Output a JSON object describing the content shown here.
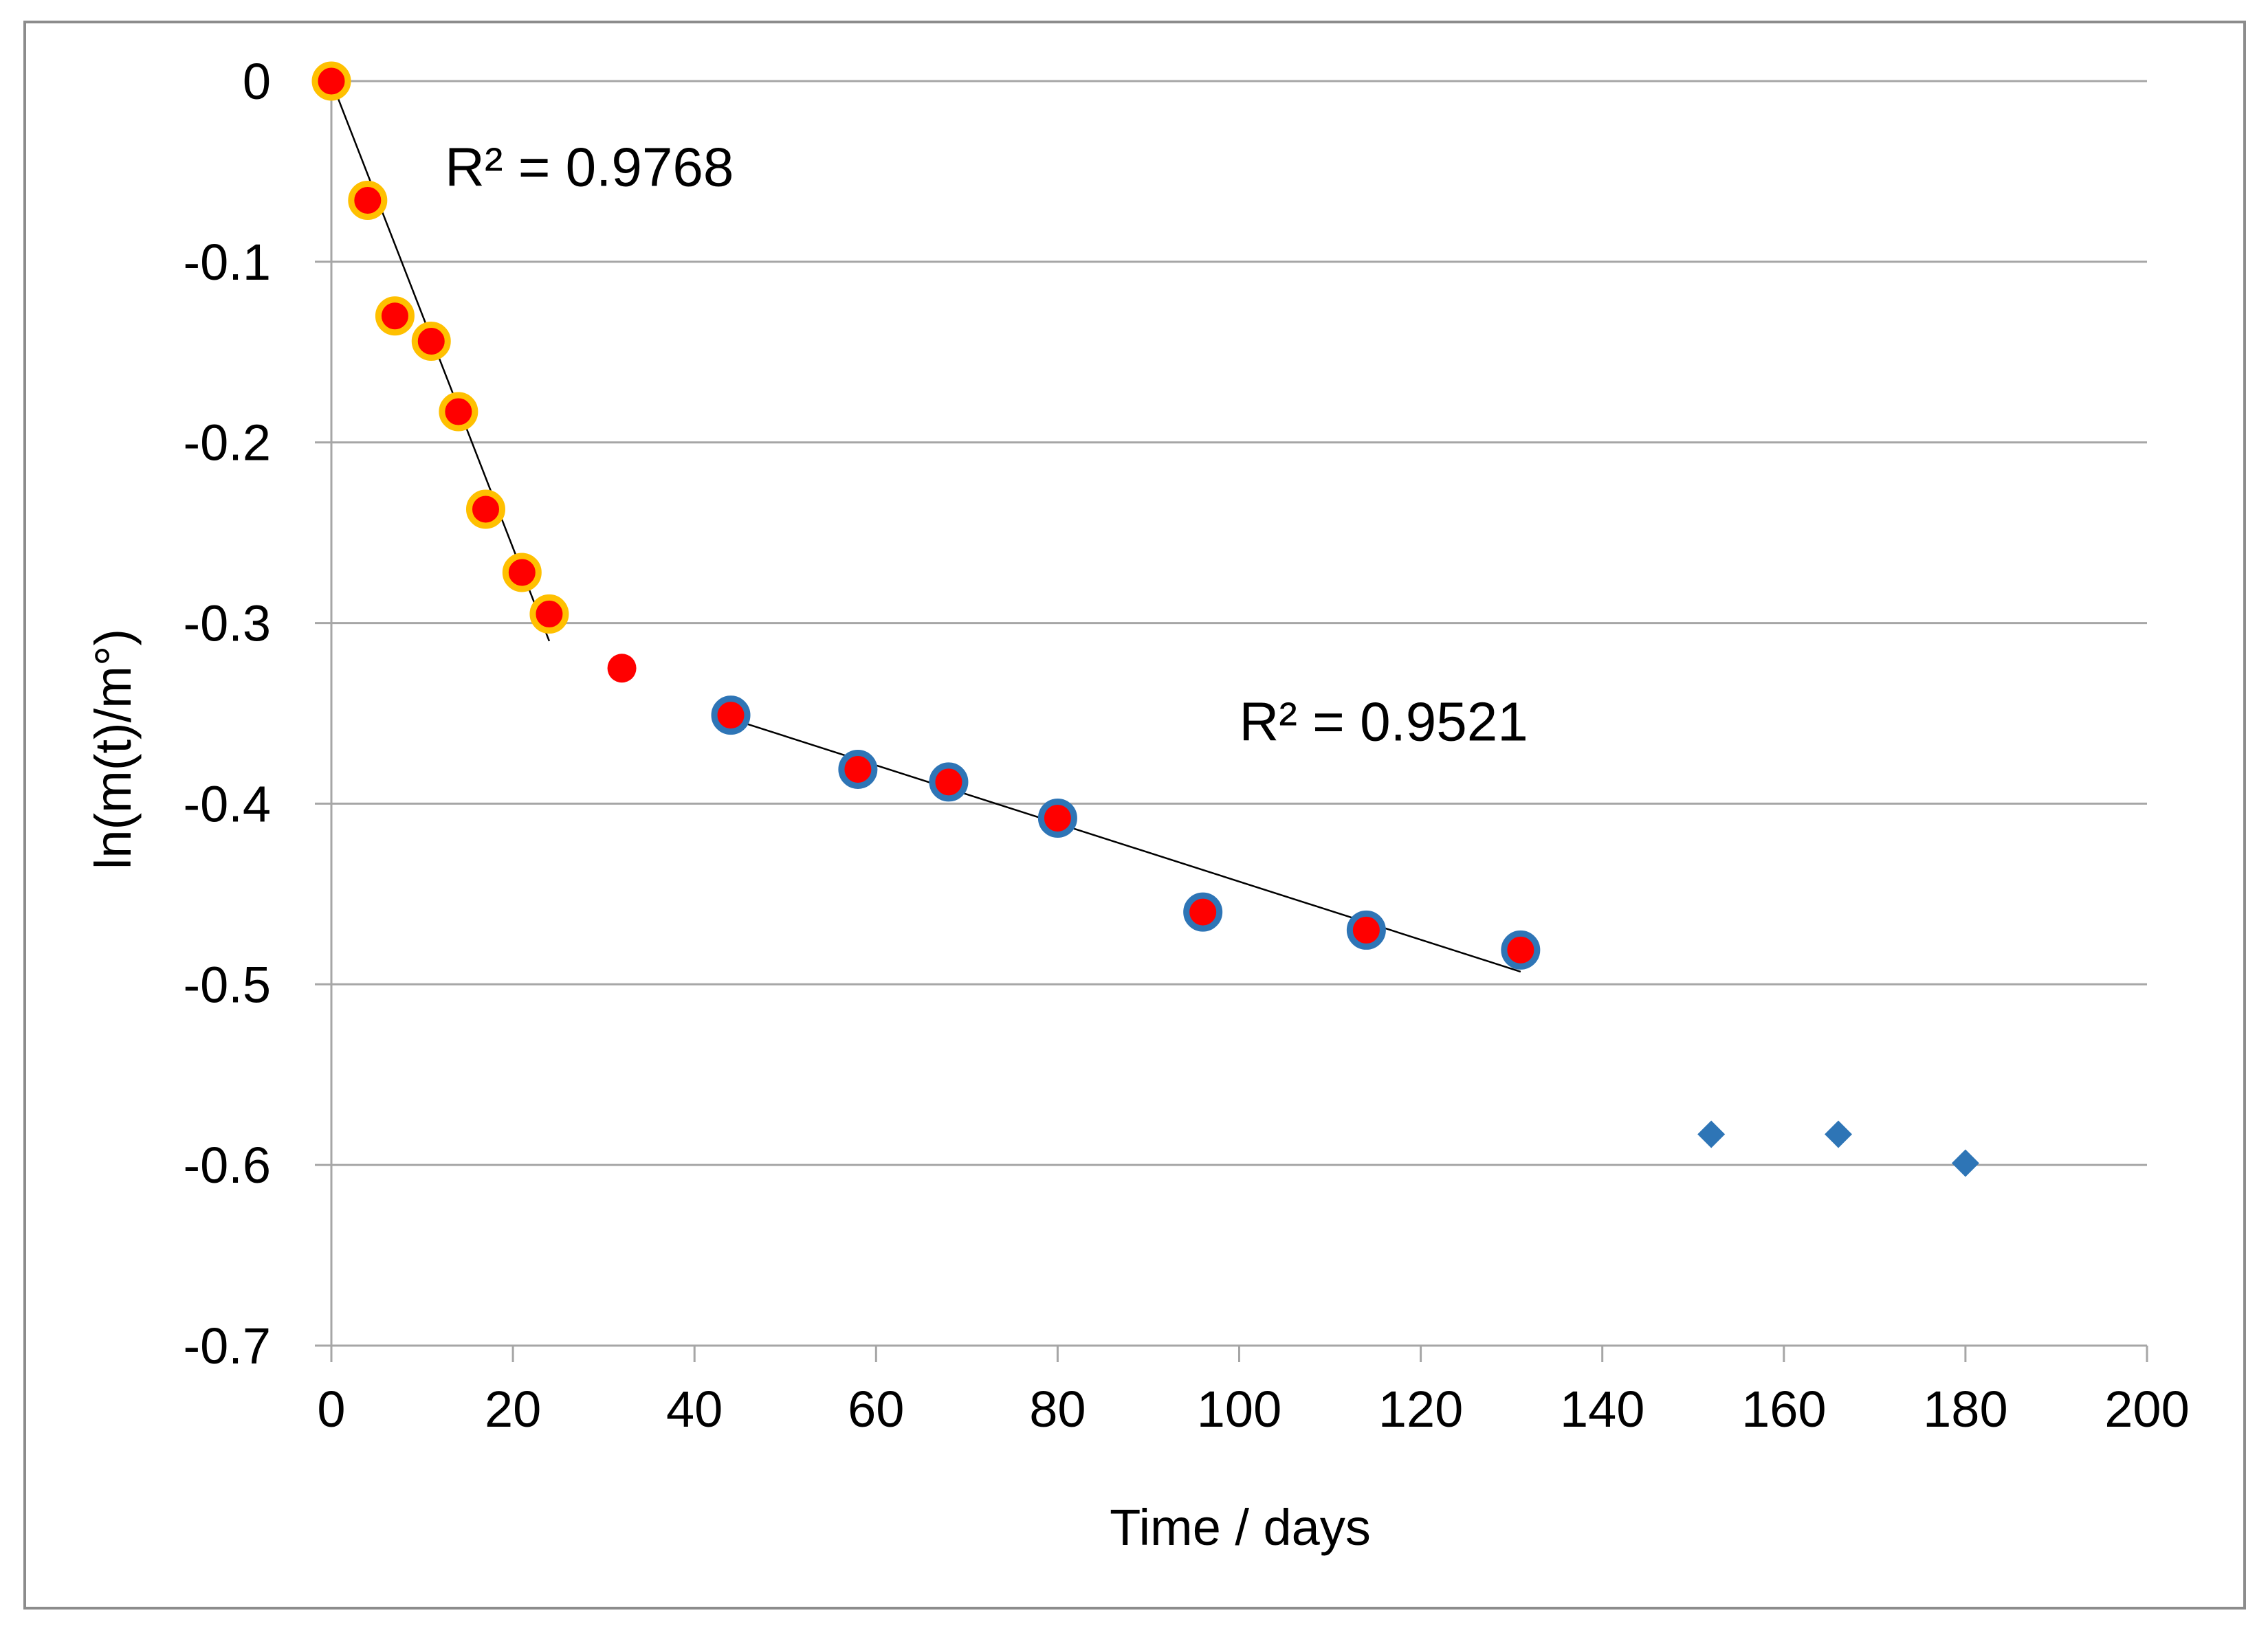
{
  "chart_data": {
    "type": "scatter",
    "title": "",
    "xlabel": "Time / days",
    "ylabel": "ln(m(t)/m°)",
    "xlim": [
      0,
      200
    ],
    "ylim": [
      -0.7,
      0
    ],
    "x_ticks": [
      0,
      20,
      40,
      60,
      80,
      100,
      120,
      140,
      160,
      180,
      200
    ],
    "y_ticks": [
      0,
      -0.1,
      -0.2,
      -0.3,
      -0.4,
      -0.5,
      -0.6,
      -0.7
    ],
    "x_tick_labels": [
      "0",
      "20",
      "40",
      "60",
      "80",
      "100",
      "120",
      "140",
      "160",
      "180",
      "200"
    ],
    "y_tick_labels": [
      "0",
      "-0.1",
      "-0.2",
      "-0.3",
      "-0.4",
      "-0.5",
      "-0.6",
      "-0.7"
    ],
    "grid": "horizontal",
    "legend": "none",
    "series": [
      {
        "name": "early phase (orange-outlined red circles)",
        "marker": "circle",
        "fill": "#ff0000",
        "stroke": "#ffc000",
        "points": [
          [
            0,
            0
          ],
          [
            4,
            -0.066
          ],
          [
            7,
            -0.13
          ],
          [
            11,
            -0.144
          ],
          [
            14,
            -0.183
          ],
          [
            17,
            -0.237
          ],
          [
            21,
            -0.272
          ],
          [
            24,
            -0.295
          ]
        ]
      },
      {
        "name": "transition point (red circle)",
        "marker": "circle",
        "fill": "#ff0000",
        "stroke": "none",
        "points": [
          [
            32,
            -0.325
          ]
        ]
      },
      {
        "name": "middle phase (blue-outlined red circles)",
        "marker": "circle",
        "fill": "#ff0000",
        "stroke": "#2e75b6",
        "points": [
          [
            44,
            -0.351
          ],
          [
            58,
            -0.381
          ],
          [
            68,
            -0.388
          ],
          [
            80,
            -0.408
          ],
          [
            96,
            -0.46
          ],
          [
            114,
            -0.47
          ],
          [
            131,
            -0.481
          ]
        ]
      },
      {
        "name": "late phase (blue diamonds)",
        "marker": "diamond",
        "fill": "#2e75b6",
        "stroke": "none",
        "points": [
          [
            152,
            -0.583
          ],
          [
            166,
            -0.583
          ],
          [
            180,
            -0.599
          ]
        ]
      }
    ],
    "trendlines": [
      {
        "x_start": 0,
        "x_end": 24,
        "y_start": 0,
        "y_end": -0.31,
        "color": "#000000"
      },
      {
        "x_start": 44,
        "x_end": 131,
        "y_start": -0.353,
        "y_end": -0.493,
        "color": "#000000"
      }
    ],
    "annotations": [
      {
        "text": "R² = 0.9768",
        "x": 12.5,
        "y": -0.058
      },
      {
        "text": "R² = 0.9521",
        "x": 100,
        "y": -0.365
      }
    ]
  }
}
